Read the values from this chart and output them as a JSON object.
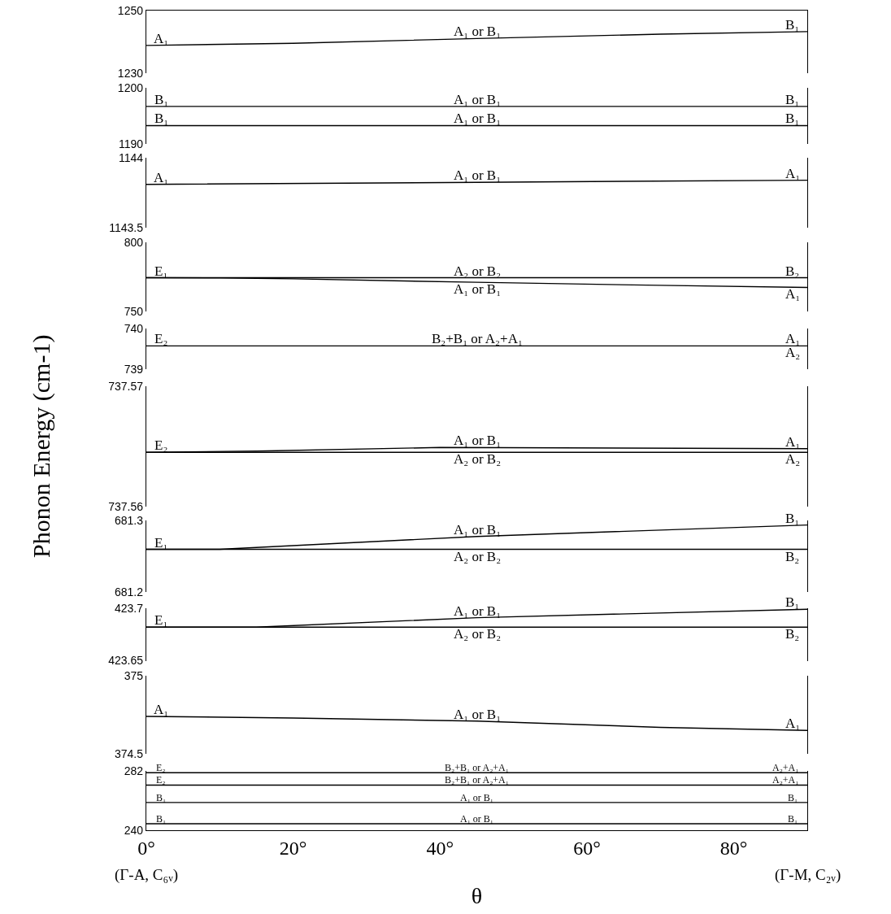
{
  "chart_data": [
    {
      "type": "line",
      "xlim": [
        0,
        90
      ],
      "ylim": [
        1230,
        1250
      ],
      "yticks": [
        1230,
        1250
      ],
      "tick_labels": "y",
      "series": [
        {
          "color": "#000000",
          "x": [
            0,
            20,
            45,
            70,
            90
          ],
          "values": [
            1238.9,
            1239.6,
            1241.1,
            1242.5,
            1243.3
          ]
        }
      ],
      "annotations": [
        {
          "text": "A₁",
          "x": 2,
          "y": 1239
        },
        {
          "text": "A₁ or B₁",
          "x": 45,
          "y": 1241.1
        },
        {
          "text": "B₁",
          "x": 88,
          "y": 1243.2
        }
      ]
    },
    {
      "type": "line",
      "xlim": [
        0,
        90
      ],
      "ylim": [
        1190,
        1200
      ],
      "yticks": [
        1190,
        1200
      ],
      "tick_labels": "y",
      "series": [
        {
          "color": "#000000",
          "x": [
            0,
            90
          ],
          "values": [
            1196.7,
            1196.7
          ]
        },
        {
          "color": "#000000",
          "x": [
            0,
            90
          ],
          "values": [
            1193.3,
            1193.3
          ]
        }
      ],
      "annotations": [
        {
          "text": "B₁",
          "x": 2,
          "y": 1196.7
        },
        {
          "text": "A₁ or B₁",
          "x": 45,
          "y": 1196.7
        },
        {
          "text": "B₁",
          "x": 88,
          "y": 1196.7
        },
        {
          "text": "B₁",
          "x": 2,
          "y": 1193.3
        },
        {
          "text": "A₁ or B₁",
          "x": 45,
          "y": 1193.3
        },
        {
          "text": "B₁",
          "x": 88,
          "y": 1193.3
        }
      ]
    },
    {
      "type": "line",
      "xlim": [
        0,
        90
      ],
      "ylim": [
        1143.5,
        1144
      ],
      "yticks": [
        1143.5,
        1144
      ],
      "tick_labels": "y",
      "series": [
        {
          "color": "#000000",
          "x": [
            0,
            45,
            90
          ],
          "values": [
            1143.81,
            1143.825,
            1143.84
          ]
        }
      ],
      "annotations": [
        {
          "text": "A₁",
          "x": 2,
          "y": 1143.81
        },
        {
          "text": "A₁ or B₁",
          "x": 45,
          "y": 1143.825
        },
        {
          "text": "A₁",
          "x": 88,
          "y": 1143.84
        }
      ]
    },
    {
      "type": "line",
      "xlim": [
        0,
        90
      ],
      "ylim": [
        750,
        800
      ],
      "yticks": [
        750,
        800
      ],
      "tick_labels": "y",
      "series": [
        {
          "color": "#000000",
          "x": [
            0,
            90
          ],
          "values": [
            774.3,
            774.3
          ]
        },
        {
          "color": "#000000",
          "x": [
            0,
            10,
            20,
            45,
            70,
            90
          ],
          "values": [
            774.3,
            774.2,
            773.5,
            771,
            768.8,
            767.3
          ]
        }
      ],
      "annotations": [
        {
          "text": "E₁",
          "x": 2,
          "y": 774.3
        },
        {
          "text": "A₂ or B₂",
          "x": 45,
          "y": 774.3
        },
        {
          "text": "B₂",
          "x": 88,
          "y": 774.3
        },
        {
          "text": "A₁ or B₁",
          "x": 45,
          "y": 771
        },
        {
          "text": "A₁",
          "x": 88,
          "y": 767.4
        }
      ]
    },
    {
      "type": "line",
      "xlim": [
        0,
        90
      ],
      "ylim": [
        739,
        740
      ],
      "yticks": [
        739,
        740
      ],
      "tick_labels": "y",
      "series": [
        {
          "color": "#000000",
          "x": [
            0,
            90
          ],
          "values": [
            739.58,
            739.58
          ]
        }
      ],
      "annotations": [
        {
          "text": "E₂",
          "x": 2,
          "y": 739.58
        },
        {
          "text": "B₂+B₁ or A₂+A₁",
          "x": 45,
          "y": 739.58
        },
        {
          "text": "A₁",
          "x": 88,
          "y": 739.58
        },
        {
          "text": "A₂",
          "x": 88,
          "y": 739.58
        }
      ]
    },
    {
      "type": "line",
      "xlim": [
        0,
        90
      ],
      "ylim": [
        737.56,
        737.57
      ],
      "yticks": [
        737.56,
        737.57
      ],
      "tick_labels": "y",
      "ylabel": "Phonon Energy (cm-1)",
      "series": [
        {
          "color": "#000000",
          "x": [
            0,
            90
          ],
          "values": [
            737.5645,
            737.5645
          ]
        },
        {
          "color": "#000000",
          "x": [
            0,
            15,
            40,
            90
          ],
          "values": [
            737.5645,
            737.5646,
            737.5649,
            737.5648
          ]
        }
      ],
      "annotations": [
        {
          "text": "E₂",
          "x": 2,
          "y": 737.5645
        },
        {
          "text": "A₁ or B₁",
          "x": 45,
          "y": 737.5649
        },
        {
          "text": "A₁",
          "x": 88,
          "y": 737.5648
        },
        {
          "text": "A₂ or B₂",
          "x": 45,
          "y": 737.5645
        },
        {
          "text": "A₂",
          "x": 88,
          "y": 737.5645
        }
      ]
    },
    {
      "type": "line",
      "xlim": [
        0,
        90
      ],
      "ylim": [
        681.2,
        681.3
      ],
      "yticks": [
        681.2,
        681.3
      ],
      "tick_labels": "y",
      "series": [
        {
          "color": "#000000",
          "x": [
            0,
            90
          ],
          "values": [
            681.26,
            681.26
          ]
        },
        {
          "color": "#000000",
          "x": [
            0,
            10,
            45,
            90
          ],
          "values": [
            681.26,
            681.26,
            681.278,
            681.294
          ]
        }
      ],
      "annotations": [
        {
          "text": "E₁",
          "x": 2,
          "y": 681.26
        },
        {
          "text": "A₁ or B₁",
          "x": 45,
          "y": 681.278
        },
        {
          "text": "B₁",
          "x": 88,
          "y": 681.293
        },
        {
          "text": "A₂ or B₂",
          "x": 45,
          "y": 681.26
        },
        {
          "text": "B₂",
          "x": 88,
          "y": 681.26
        }
      ]
    },
    {
      "type": "line",
      "xlim": [
        0,
        90
      ],
      "ylim": [
        423.65,
        423.7
      ],
      "yticks": [
        423.65,
        423.7
      ],
      "tick_labels": "y",
      "series": [
        {
          "color": "#000000",
          "x": [
            0,
            90
          ],
          "values": [
            423.682,
            423.682
          ]
        },
        {
          "color": "#000000",
          "x": [
            0,
            15,
            45,
            90
          ],
          "values": [
            423.682,
            423.682,
            423.691,
            423.699
          ]
        }
      ],
      "annotations": [
        {
          "text": "E₁",
          "x": 2,
          "y": 423.682
        },
        {
          "text": "A₁ or B₁",
          "x": 45,
          "y": 423.691
        },
        {
          "text": "B₁",
          "x": 88,
          "y": 423.699
        },
        {
          "text": "A₂ or B₂",
          "x": 45,
          "y": 423.682
        },
        {
          "text": "B₂",
          "x": 88,
          "y": 423.682
        }
      ]
    },
    {
      "type": "line",
      "xlim": [
        0,
        90
      ],
      "ylim": [
        374.5,
        375
      ],
      "yticks": [
        374.5,
        375
      ],
      "tick_labels": "y",
      "series": [
        {
          "color": "#000000",
          "x": [
            0,
            20,
            45,
            70,
            90
          ],
          "values": [
            374.74,
            374.73,
            374.71,
            374.67,
            374.65
          ]
        }
      ],
      "annotations": [
        {
          "text": "A₁",
          "x": 2,
          "y": 374.74
        },
        {
          "text": "A₁ or B₁",
          "x": 45,
          "y": 374.71
        },
        {
          "text": "A₁",
          "x": 88,
          "y": 374.65
        }
      ]
    },
    {
      "type": "line",
      "xlim": [
        0,
        90
      ],
      "ylim": [
        240,
        282
      ],
      "yticks": [
        240,
        282
      ],
      "xticks": [
        {
          "value": 0,
          "label": "0°"
        },
        {
          "value": 20,
          "label": "20°"
        },
        {
          "value": 40,
          "label": "40°"
        },
        {
          "value": 60,
          "label": "60°"
        },
        {
          "value": 80,
          "label": "80°"
        }
      ],
      "xlabel": "θ",
      "series": [
        {
          "color": "#000000",
          "x": [
            0,
            90
          ],
          "values": [
            280.5,
            280.5
          ]
        },
        {
          "color": "#000000",
          "x": [
            0,
            90
          ],
          "values": [
            271.8,
            271.8
          ]
        },
        {
          "color": "#000000",
          "x": [
            0,
            90
          ],
          "values": [
            259.5,
            259.5
          ]
        },
        {
          "color": "#000000",
          "x": [
            0,
            90
          ],
          "values": [
            244.6,
            244.6
          ]
        }
      ],
      "annotations": [
        {
          "text": "E₂",
          "x": 2,
          "y": 280.5
        },
        {
          "text": "B₂+B₁ or A₂+A₁",
          "x": 45,
          "y": 280.5
        },
        {
          "text": "A₂+A₁",
          "x": 87,
          "y": 280.5
        },
        {
          "text": "E₂",
          "x": 2,
          "y": 271.8
        },
        {
          "text": "B₂+B₁ or A₂+A₁",
          "x": 45,
          "y": 271.8
        },
        {
          "text": "A₂+A₁",
          "x": 87,
          "y": 271.8
        },
        {
          "text": "B₁",
          "x": 2,
          "y": 259.5
        },
        {
          "text": "A₁ or B₁",
          "x": 45,
          "y": 259.5
        },
        {
          "text": "B₁",
          "x": 88,
          "y": 259.5
        },
        {
          "text": "B₁",
          "x": 2,
          "y": 244.6
        },
        {
          "text": "A₁ or B₁",
          "x": 45,
          "y": 244.6
        },
        {
          "text": "B₁",
          "x": 88,
          "y": 244.6
        },
        "(Γ-A, C₆ᵥ)",
        "(Γ-M, C₂ᵥ)"
      ]
    }
  ]
}
